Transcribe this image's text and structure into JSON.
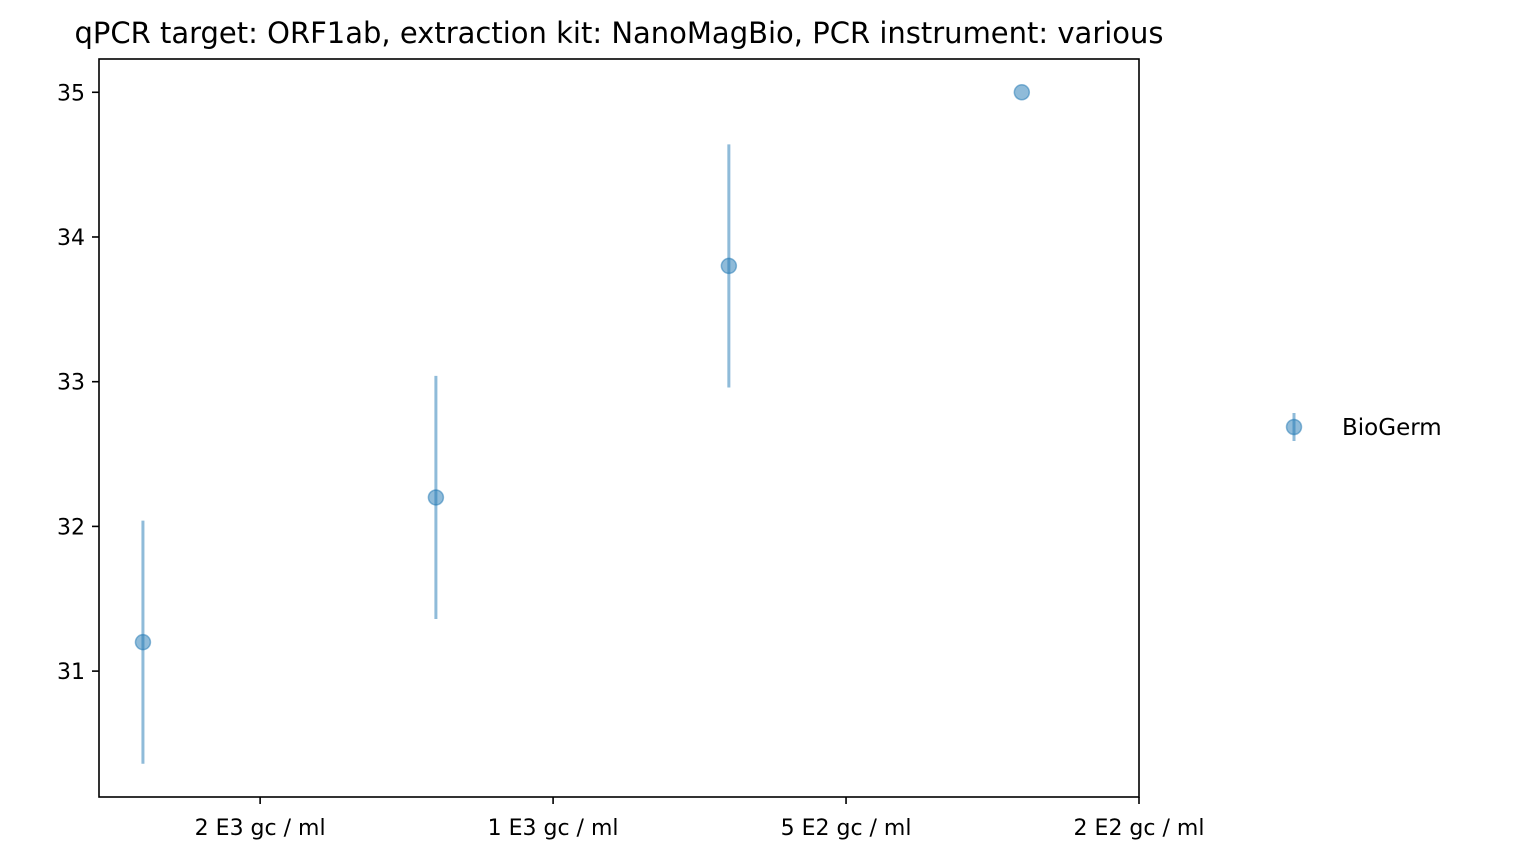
{
  "chart_data": {
    "type": "scatter",
    "title": "qPCR target: ORF1ab, extraction kit: NanoMagBio, PCR instrument: various",
    "xlabel": "",
    "ylabel": "",
    "x_ticks": [
      {
        "value": 0.5,
        "label": "2 E3 gc / ml"
      },
      {
        "value": 1.5,
        "label": "1 E3 gc / ml"
      },
      {
        "value": 2.5,
        "label": "5 E2 gc / ml"
      },
      {
        "value": 3.5,
        "label": "2 E2 gc / ml"
      }
    ],
    "xlim": [
      -0.05,
      3.5
    ],
    "ylim": [
      30.13,
      35.23
    ],
    "y_ticks": [
      31,
      32,
      33,
      34,
      35
    ],
    "grid": false,
    "legend_position": "center-right-outside",
    "series": [
      {
        "name": "BioGerm",
        "color": "#1f77b4",
        "points": [
          {
            "x": 0.1,
            "y": 31.2,
            "yerr": 0.84
          },
          {
            "x": 1.1,
            "y": 32.2,
            "yerr": 0.84
          },
          {
            "x": 2.1,
            "y": 33.8,
            "yerr": 0.84
          },
          {
            "x": 3.1,
            "y": 35.0,
            "yerr": 0
          }
        ]
      }
    ]
  }
}
